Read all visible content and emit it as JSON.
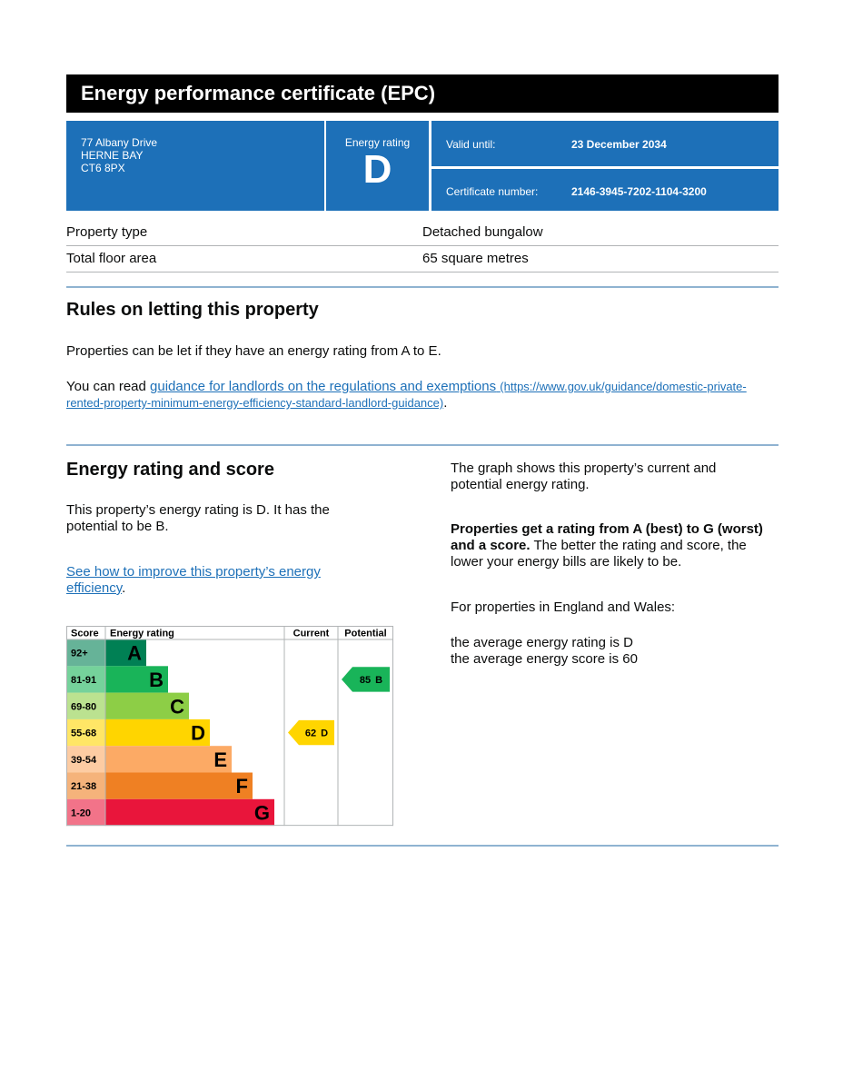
{
  "header": {
    "title": "Energy performance certificate (EPC)"
  },
  "address": [
    "77 Albany Drive",
    "HERNE BAY",
    "CT6 8PX"
  ],
  "energy_rating": {
    "label": "Energy rating",
    "value": "D"
  },
  "valid_until": {
    "label": "Valid until:",
    "value": "23 December 2034"
  },
  "certificate_number": {
    "label": "Certificate number:",
    "value": "2146-3945-7202-1104-3200"
  },
  "property_rows": [
    {
      "label": "Property type",
      "value": "Detached bungalow"
    },
    {
      "label": "Total floor area",
      "value": "65 square metres"
    }
  ],
  "rules": {
    "title": "Rules on letting this property",
    "paragraph": "Properties can be let if they have an energy rating from A to E.",
    "read_prefix": "You can read ",
    "link_text": "guidance for landlords on the regulations and exemptions",
    "link_url": "(https://www.gov.uk/guidance/domestic-private-rented-property-minimum-energy-efficiency-standard-landlord-guidance)",
    "read_suffix": "."
  },
  "rating_section": {
    "title": "Energy rating and score",
    "summary": "This property’s energy rating is D. It has the potential to be B.",
    "improve_link": "See how to improve this property’s energy efficiency",
    "improve_suffix": ".",
    "graph_note": "The graph shows this property’s current and potential energy rating.",
    "scale_bold": "Properties get a rating from A (best) to G (worst) and a score.",
    "scale_rest": " The better the rating and score, the lower your energy bills are likely to be.",
    "region": "For properties in England and Wales:",
    "average_rating": "the average energy rating is D",
    "average_score": "the average energy score is 60"
  },
  "rating_chart": {
    "headers": [
      "Score",
      "Energy rating",
      "Current",
      "Potential"
    ],
    "bands": [
      {
        "score": "92+",
        "rating": "A",
        "color": "#008054"
      },
      {
        "score": "81-91",
        "rating": "B",
        "color": "#19b459"
      },
      {
        "score": "69-80",
        "rating": "C",
        "color": "#8dce46"
      },
      {
        "score": "55-68",
        "rating": "D",
        "color": "#ffd500"
      },
      {
        "score": "39-54",
        "rating": "E",
        "color": "#fcaa65"
      },
      {
        "score": "21-38",
        "rating": "F",
        "color": "#ef8023"
      },
      {
        "score": "1-20",
        "rating": "G",
        "color": "#e9153b"
      }
    ],
    "current": {
      "score": 62,
      "rating": "D"
    },
    "potential": {
      "score": 85,
      "rating": "B"
    }
  }
}
